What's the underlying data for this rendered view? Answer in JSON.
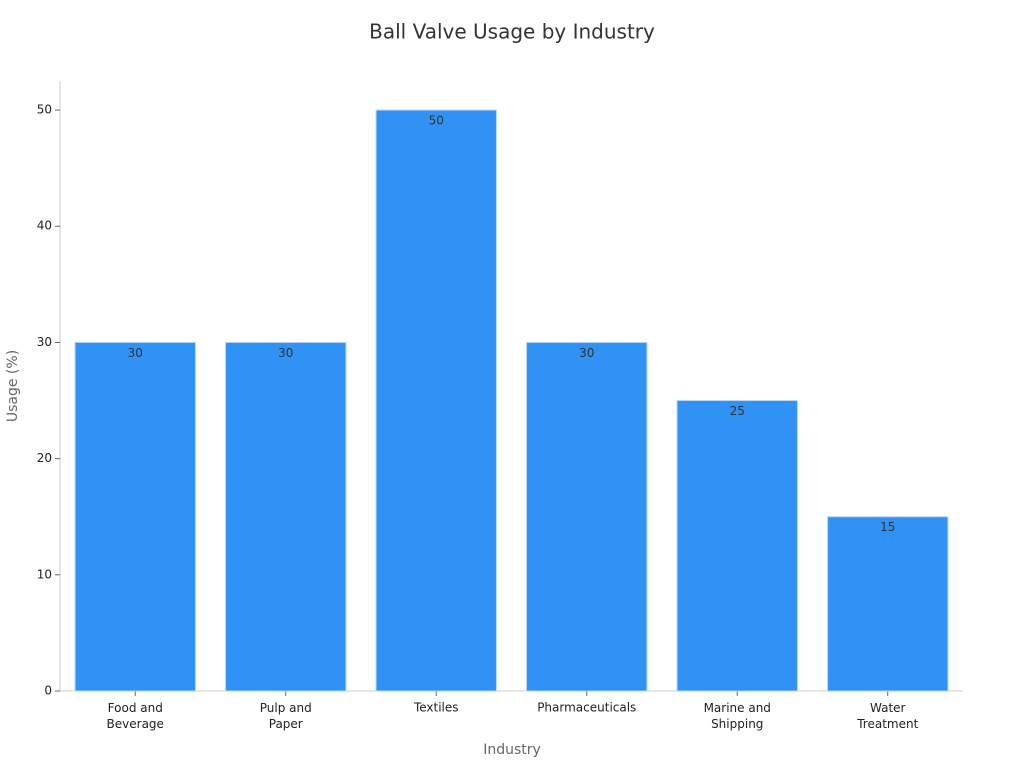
{
  "chart_data": {
    "type": "bar",
    "title": "Ball Valve Usage by Industry",
    "x_label": "Industry",
    "y_label": "Usage (%)",
    "categories": [
      "Food and\nBeverage",
      "Pulp and\nPaper",
      "Textiles",
      "Pharmaceuticals",
      "Marine and\nShipping",
      "Water\nTreatment"
    ],
    "values": [
      30,
      30,
      50,
      30,
      25,
      15
    ],
    "color": "#3092f5",
    "ylim": [
      0,
      52.5
    ],
    "yticks": [
      0,
      10,
      20,
      30,
      40,
      50
    ],
    "grid": false
  }
}
